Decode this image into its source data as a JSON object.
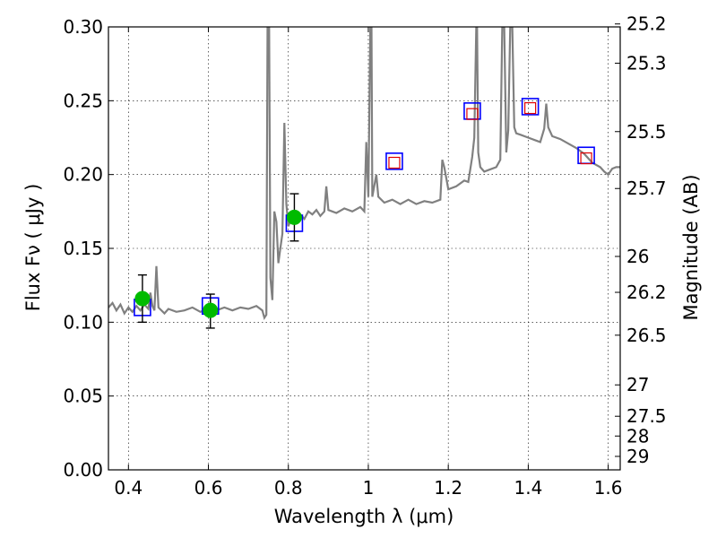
{
  "chart_data": {
    "type": "line",
    "xlabel": "Wavelength  λ (μm)",
    "ylabel": "Flux  Fν  ( μJy )",
    "y2label": "Magnitude (AB)",
    "xlim": [
      0.35,
      1.63
    ],
    "ylim": [
      0.0,
      0.3
    ],
    "grid": true,
    "x_ticks": [
      {
        "v": 0.4,
        "label": "0.4"
      },
      {
        "v": 0.6,
        "label": "0.6"
      },
      {
        "v": 0.8,
        "label": "0.8"
      },
      {
        "v": 1.0,
        "label": "1"
      },
      {
        "v": 1.2,
        "label": "1.2"
      },
      {
        "v": 1.4,
        "label": "1.4"
      },
      {
        "v": 1.6,
        "label": "1.6"
      }
    ],
    "y_ticks": [
      {
        "v": 0.0,
        "label": "0.00"
      },
      {
        "v": 0.05,
        "label": "0.05"
      },
      {
        "v": 0.1,
        "label": "0.10"
      },
      {
        "v": 0.15,
        "label": "0.15"
      },
      {
        "v": 0.2,
        "label": "0.20"
      },
      {
        "v": 0.25,
        "label": "0.25"
      },
      {
        "v": 0.3,
        "label": "0.30"
      }
    ],
    "mag_ticks": [
      {
        "mag": 25.2,
        "label": "25.2"
      },
      {
        "mag": 25.3,
        "label": "25.3"
      },
      {
        "mag": 25.5,
        "label": "25.5"
      },
      {
        "mag": 25.7,
        "label": "25.7"
      },
      {
        "mag": 26.0,
        "label": "26"
      },
      {
        "mag": 26.2,
        "label": "26.2"
      },
      {
        "mag": 26.5,
        "label": "26.5"
      },
      {
        "mag": 27.0,
        "label": "27"
      },
      {
        "mag": 27.5,
        "label": "27.5"
      },
      {
        "mag": 28.0,
        "label": "28"
      },
      {
        "mag": 29.0,
        "label": "29"
      }
    ],
    "series": [
      {
        "style": "line",
        "color": "#808080",
        "points": [
          [
            0.35,
            0.11
          ],
          [
            0.36,
            0.113
          ],
          [
            0.37,
            0.108
          ],
          [
            0.38,
            0.112
          ],
          [
            0.39,
            0.106
          ],
          [
            0.4,
            0.11
          ],
          [
            0.41,
            0.107
          ],
          [
            0.42,
            0.111
          ],
          [
            0.43,
            0.108
          ],
          [
            0.44,
            0.112
          ],
          [
            0.45,
            0.109
          ],
          [
            0.455,
            0.12
          ],
          [
            0.46,
            0.111
          ],
          [
            0.465,
            0.108
          ],
          [
            0.47,
            0.138
          ],
          [
            0.475,
            0.11
          ],
          [
            0.49,
            0.106
          ],
          [
            0.5,
            0.109
          ],
          [
            0.52,
            0.107
          ],
          [
            0.54,
            0.108
          ],
          [
            0.56,
            0.11
          ],
          [
            0.58,
            0.107
          ],
          [
            0.6,
            0.109
          ],
          [
            0.62,
            0.108
          ],
          [
            0.64,
            0.11
          ],
          [
            0.66,
            0.108
          ],
          [
            0.68,
            0.11
          ],
          [
            0.7,
            0.109
          ],
          [
            0.72,
            0.111
          ],
          [
            0.735,
            0.108
          ],
          [
            0.74,
            0.103
          ],
          [
            0.745,
            0.105
          ],
          [
            0.748,
            0.3
          ],
          [
            0.752,
            0.3
          ],
          [
            0.755,
            0.13
          ],
          [
            0.76,
            0.115
          ],
          [
            0.765,
            0.175
          ],
          [
            0.77,
            0.168
          ],
          [
            0.775,
            0.14
          ],
          [
            0.78,
            0.15
          ],
          [
            0.785,
            0.16
          ],
          [
            0.79,
            0.235
          ],
          [
            0.795,
            0.18
          ],
          [
            0.8,
            0.165
          ],
          [
            0.81,
            0.172
          ],
          [
            0.82,
            0.168
          ],
          [
            0.83,
            0.173
          ],
          [
            0.84,
            0.17
          ],
          [
            0.85,
            0.175
          ],
          [
            0.86,
            0.173
          ],
          [
            0.87,
            0.176
          ],
          [
            0.88,
            0.172
          ],
          [
            0.89,
            0.175
          ],
          [
            0.895,
            0.192
          ],
          [
            0.9,
            0.176
          ],
          [
            0.92,
            0.174
          ],
          [
            0.94,
            0.177
          ],
          [
            0.96,
            0.175
          ],
          [
            0.98,
            0.178
          ],
          [
            0.99,
            0.175
          ],
          [
            0.995,
            0.222
          ],
          [
            1.0,
            0.185
          ],
          [
            1.005,
            0.3
          ],
          [
            1.008,
            0.3
          ],
          [
            1.01,
            0.185
          ],
          [
            1.02,
            0.2
          ],
          [
            1.025,
            0.185
          ],
          [
            1.04,
            0.181
          ],
          [
            1.06,
            0.183
          ],
          [
            1.08,
            0.18
          ],
          [
            1.1,
            0.183
          ],
          [
            1.12,
            0.18
          ],
          [
            1.14,
            0.182
          ],
          [
            1.16,
            0.181
          ],
          [
            1.18,
            0.183
          ],
          [
            1.185,
            0.21
          ],
          [
            1.19,
            0.205
          ],
          [
            1.2,
            0.19
          ],
          [
            1.22,
            0.192
          ],
          [
            1.24,
            0.196
          ],
          [
            1.25,
            0.195
          ],
          [
            1.26,
            0.212
          ],
          [
            1.265,
            0.225
          ],
          [
            1.27,
            0.3
          ],
          [
            1.272,
            0.3
          ],
          [
            1.275,
            0.215
          ],
          [
            1.28,
            0.205
          ],
          [
            1.29,
            0.202
          ],
          [
            1.3,
            0.203
          ],
          [
            1.32,
            0.205
          ],
          [
            1.33,
            0.21
          ],
          [
            1.335,
            0.3
          ],
          [
            1.34,
            0.3
          ],
          [
            1.345,
            0.215
          ],
          [
            1.35,
            0.23
          ],
          [
            1.355,
            0.3
          ],
          [
            1.36,
            0.3
          ],
          [
            1.365,
            0.232
          ],
          [
            1.37,
            0.228
          ],
          [
            1.38,
            0.227
          ],
          [
            1.4,
            0.225
          ],
          [
            1.42,
            0.223
          ],
          [
            1.43,
            0.222
          ],
          [
            1.44,
            0.231
          ],
          [
            1.445,
            0.248
          ],
          [
            1.45,
            0.232
          ],
          [
            1.46,
            0.226
          ],
          [
            1.48,
            0.224
          ],
          [
            1.5,
            0.221
          ],
          [
            1.52,
            0.218
          ],
          [
            1.54,
            0.214
          ],
          [
            1.56,
            0.208
          ],
          [
            1.58,
            0.205
          ],
          [
            1.59,
            0.202
          ],
          [
            1.6,
            0.2
          ],
          [
            1.61,
            0.204
          ],
          [
            1.62,
            0.205
          ],
          [
            1.63,
            0.205
          ]
        ]
      },
      {
        "style": "square-outline",
        "color": "#0000ff",
        "points": [
          [
            0.435,
            0.11
          ],
          [
            0.605,
            0.111
          ],
          [
            0.815,
            0.167
          ],
          [
            1.065,
            0.209
          ],
          [
            1.26,
            0.243
          ],
          [
            1.405,
            0.246
          ],
          [
            1.545,
            0.213
          ]
        ]
      },
      {
        "style": "square-outline-small",
        "color": "#e00000",
        "points": [
          [
            1.065,
            0.208
          ],
          [
            1.26,
            0.241
          ],
          [
            1.405,
            0.245
          ],
          [
            1.545,
            0.211
          ]
        ]
      },
      {
        "style": "circle-errorbar",
        "color": "#00bb00",
        "points": [
          {
            "x": 0.435,
            "y": 0.116,
            "lo": 0.1,
            "hi": 0.132
          },
          {
            "x": 0.605,
            "y": 0.108,
            "lo": 0.096,
            "hi": 0.119
          },
          {
            "x": 0.815,
            "y": 0.171,
            "lo": 0.155,
            "hi": 0.187
          }
        ]
      }
    ]
  }
}
